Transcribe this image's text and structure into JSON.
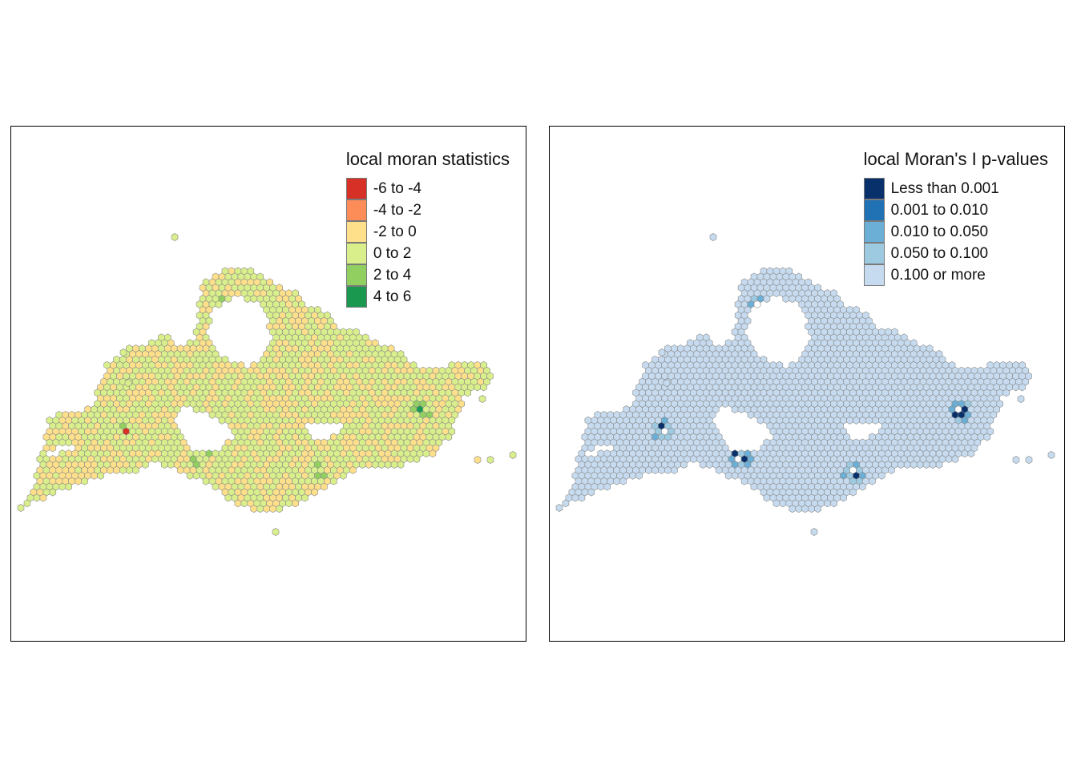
{
  "panels": [
    {
      "legend_title": "local moran statistics",
      "legend": [
        {
          "label": "-6 to -4",
          "color": "#d73027"
        },
        {
          "label": "-4 to -2",
          "color": "#fc8d59"
        },
        {
          "label": "-2 to 0",
          "color": "#fee08b"
        },
        {
          "label": "0 to 2",
          "color": "#d9ef8b"
        },
        {
          "label": "2 to 4",
          "color": "#91cf60"
        },
        {
          "label": "4 to 6",
          "color": "#1a9850"
        }
      ]
    },
    {
      "legend_title": "local Moran's I p-values",
      "legend": [
        {
          "label": "Less than 0.001",
          "color": "#08306b"
        },
        {
          "label": "0.001 to 0.010",
          "color": "#2171b5"
        },
        {
          "label": "0.010 to 0.050",
          "color": "#6baed6"
        },
        {
          "label": "0.050 to 0.100",
          "color": "#9ecae1"
        },
        {
          "label": "0.100 or more",
          "color": "#c6dbef"
        }
      ]
    }
  ]
}
